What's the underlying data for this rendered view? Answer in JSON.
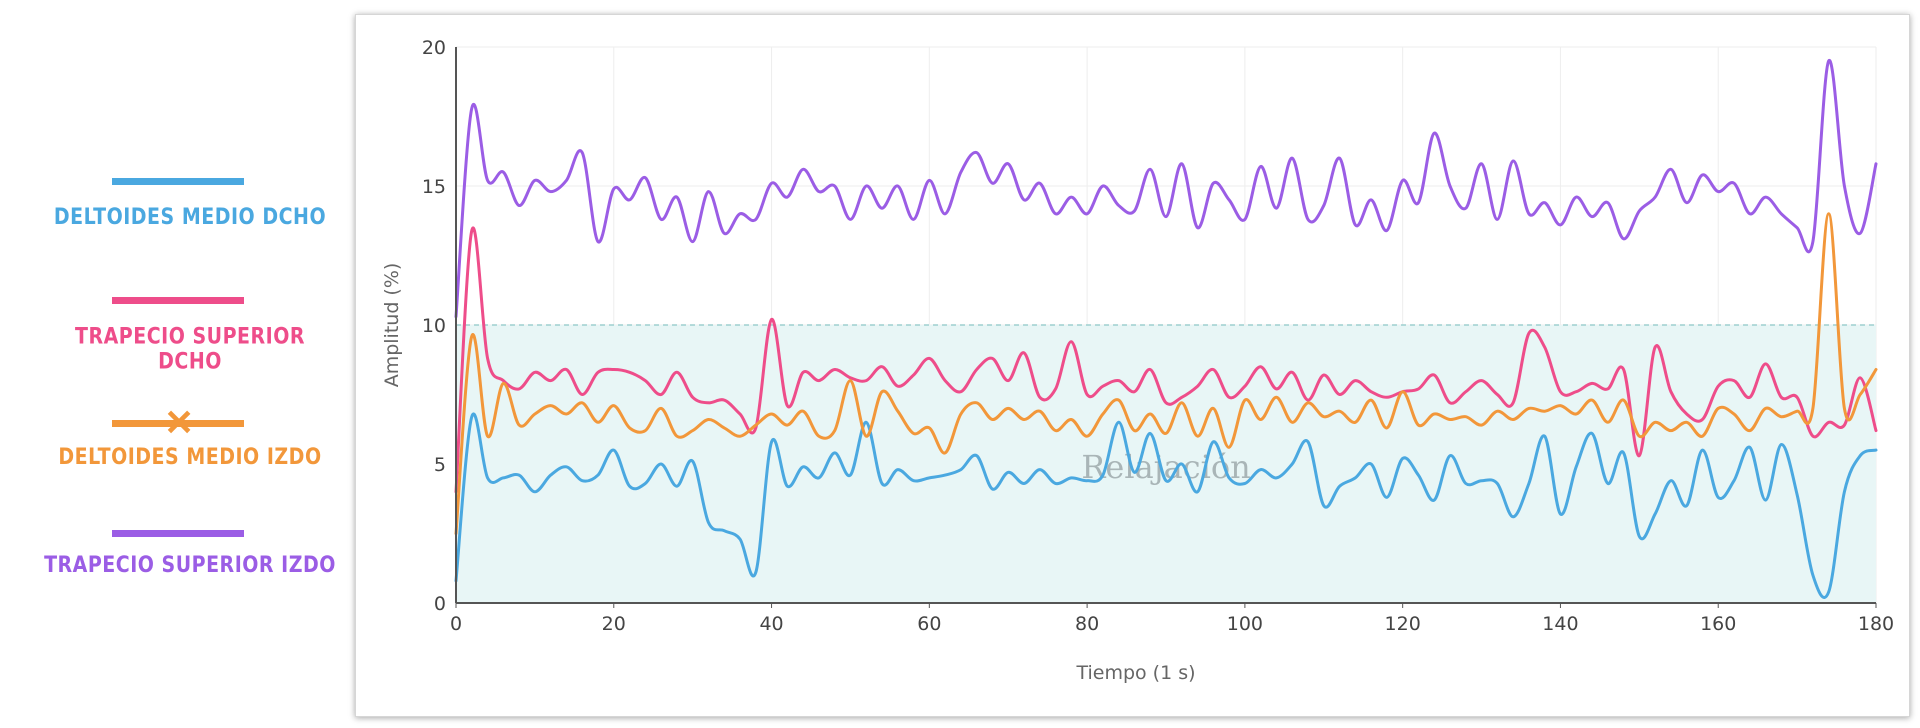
{
  "legend": {
    "items": [
      {
        "label": "DELTOIDES MEDIO DCHO",
        "color": "#4aa8e0",
        "hidden": false
      },
      {
        "label": "TRAPECIO SUPERIOR DCHO",
        "color": "#ee4d8a",
        "hidden": false
      },
      {
        "label": "DELTOIDES MEDIO IZDO",
        "color": "#f2973a",
        "hidden": true
      },
      {
        "label": "TRAPECIO SUPERIOR IZDO",
        "color": "#9b5de5",
        "hidden": false
      }
    ]
  },
  "chart_data": {
    "type": "line",
    "xlabel": "Tiempo (1 s)",
    "ylabel": "Amplitud (%)",
    "xlim": [
      0,
      180
    ],
    "ylim": [
      0,
      20
    ],
    "xticks": [
      0,
      20,
      40,
      60,
      80,
      100,
      120,
      140,
      160,
      180
    ],
    "yticks": [
      0,
      5,
      10,
      15,
      20
    ],
    "grid": true,
    "band": {
      "from": 0,
      "to": 10,
      "label": "Relajación",
      "color": "#e8f6f6",
      "line_color": "#9ecfcf"
    },
    "x": [
      0,
      2,
      4,
      6,
      8,
      10,
      12,
      14,
      16,
      18,
      20,
      22,
      24,
      26,
      28,
      30,
      32,
      34,
      36,
      38,
      40,
      42,
      44,
      46,
      48,
      50,
      52,
      54,
      56,
      58,
      60,
      62,
      64,
      66,
      68,
      70,
      72,
      74,
      76,
      78,
      80,
      82,
      84,
      86,
      88,
      90,
      92,
      94,
      96,
      98,
      100,
      102,
      104,
      106,
      108,
      110,
      112,
      114,
      116,
      118,
      120,
      122,
      124,
      126,
      128,
      130,
      132,
      134,
      136,
      138,
      140,
      142,
      144,
      146,
      148,
      150,
      152,
      154,
      156,
      158,
      160,
      162,
      164,
      166,
      168,
      170,
      172,
      174,
      176,
      178,
      180
    ],
    "series": [
      {
        "name": "DELTOIDES MEDIO DCHO",
        "color": "#4aa8e0",
        "values": [
          0.8,
          6.7,
          4.5,
          4.5,
          4.6,
          4.0,
          4.6,
          4.9,
          4.4,
          4.6,
          5.5,
          4.2,
          4.3,
          5.0,
          4.2,
          5.1,
          2.9,
          2.6,
          2.3,
          1.1,
          5.8,
          4.2,
          4.9,
          4.5,
          5.4,
          4.6,
          6.5,
          4.3,
          4.8,
          4.4,
          4.5,
          4.6,
          4.8,
          5.3,
          4.1,
          4.7,
          4.3,
          4.8,
          4.3,
          4.5,
          4.4,
          4.6,
          6.5,
          4.7,
          6.1,
          4.4,
          5.0,
          4.0,
          5.8,
          4.5,
          4.3,
          4.8,
          4.5,
          5.0,
          5.8,
          3.5,
          4.2,
          4.5,
          5.0,
          3.8,
          5.2,
          4.6,
          3.7,
          5.3,
          4.3,
          4.4,
          4.3,
          3.1,
          4.3,
          6.0,
          3.2,
          4.9,
          6.1,
          4.3,
          5.4,
          2.4,
          3.2,
          4.4,
          3.5,
          5.5,
          3.8,
          4.4,
          5.6,
          3.7,
          5.7,
          3.9,
          1.0,
          0.4,
          4.0,
          5.3,
          5.5
        ]
      },
      {
        "name": "TRAPECIO SUPERIOR DCHO",
        "color": "#ee4d8a",
        "values": [
          4.0,
          13.4,
          8.8,
          8.0,
          7.7,
          8.3,
          8.0,
          8.4,
          7.5,
          8.3,
          8.4,
          8.3,
          8.0,
          7.5,
          8.3,
          7.4,
          7.2,
          7.3,
          6.8,
          6.3,
          10.2,
          7.1,
          8.3,
          8.0,
          8.4,
          8.1,
          8.0,
          8.5,
          7.8,
          8.2,
          8.8,
          8.0,
          7.6,
          8.4,
          8.8,
          8.0,
          9.0,
          7.4,
          7.7,
          9.4,
          7.5,
          7.8,
          8.0,
          7.6,
          8.4,
          7.2,
          7.4,
          7.8,
          8.4,
          7.4,
          7.8,
          8.5,
          7.7,
          8.3,
          7.3,
          8.2,
          7.5,
          8.0,
          7.6,
          7.4,
          7.6,
          7.7,
          8.2,
          7.2,
          7.6,
          8.0,
          7.5,
          7.2,
          9.7,
          9.2,
          7.6,
          7.6,
          7.9,
          7.7,
          8.4,
          5.3,
          9.2,
          7.6,
          6.8,
          6.6,
          7.8,
          8.0,
          7.4,
          8.6,
          7.4,
          7.4,
          6.0,
          6.5,
          6.4,
          8.1,
          6.2
        ]
      },
      {
        "name": "DELTOIDES MEDIO IZDO",
        "color": "#f2973a",
        "values": [
          2.5,
          9.6,
          6.0,
          7.9,
          6.4,
          6.8,
          7.1,
          6.8,
          7.2,
          6.5,
          7.1,
          6.3,
          6.2,
          7.0,
          6.0,
          6.2,
          6.6,
          6.3,
          6.0,
          6.4,
          6.8,
          6.4,
          6.9,
          6.0,
          6.2,
          8.0,
          6.0,
          7.6,
          6.9,
          6.1,
          6.3,
          5.4,
          6.8,
          7.2,
          6.6,
          7.0,
          6.6,
          6.9,
          6.2,
          6.6,
          6.0,
          6.8,
          7.3,
          6.2,
          6.8,
          6.1,
          7.2,
          6.0,
          7.0,
          5.6,
          7.3,
          6.6,
          7.4,
          6.5,
          7.2,
          6.7,
          6.9,
          6.5,
          7.3,
          6.3,
          7.6,
          6.4,
          6.8,
          6.6,
          6.7,
          6.4,
          6.9,
          6.6,
          7.0,
          6.9,
          7.1,
          6.8,
          7.3,
          6.5,
          7.3,
          6.0,
          6.5,
          6.2,
          6.5,
          6.0,
          7.0,
          6.8,
          6.2,
          7.0,
          6.7,
          6.9,
          7.0,
          14.0,
          7.0,
          7.5,
          8.4
        ]
      },
      {
        "name": "TRAPECIO SUPERIOR IZDO",
        "color": "#9b5de5",
        "values": [
          10.3,
          17.8,
          15.2,
          15.5,
          14.3,
          15.2,
          14.8,
          15.2,
          16.2,
          13.0,
          14.9,
          14.5,
          15.3,
          13.8,
          14.6,
          13.0,
          14.8,
          13.3,
          14.0,
          13.8,
          15.1,
          14.6,
          15.6,
          14.8,
          15.0,
          13.8,
          15.0,
          14.2,
          15.0,
          13.8,
          15.2,
          14.0,
          15.5,
          16.2,
          15.1,
          15.8,
          14.5,
          15.1,
          14.0,
          14.6,
          14.0,
          15.0,
          14.3,
          14.1,
          15.6,
          13.9,
          15.8,
          13.5,
          15.1,
          14.5,
          13.8,
          15.7,
          14.2,
          16.0,
          13.8,
          14.3,
          16.0,
          13.6,
          14.5,
          13.4,
          15.2,
          14.4,
          16.9,
          15.0,
          14.2,
          15.8,
          13.8,
          15.9,
          14.0,
          14.4,
          13.6,
          14.6,
          13.9,
          14.4,
          13.1,
          14.1,
          14.6,
          15.6,
          14.4,
          15.4,
          14.8,
          15.1,
          14.0,
          14.6,
          14.0,
          13.5,
          13.0,
          19.5,
          15.0,
          13.3,
          15.8
        ]
      }
    ]
  }
}
